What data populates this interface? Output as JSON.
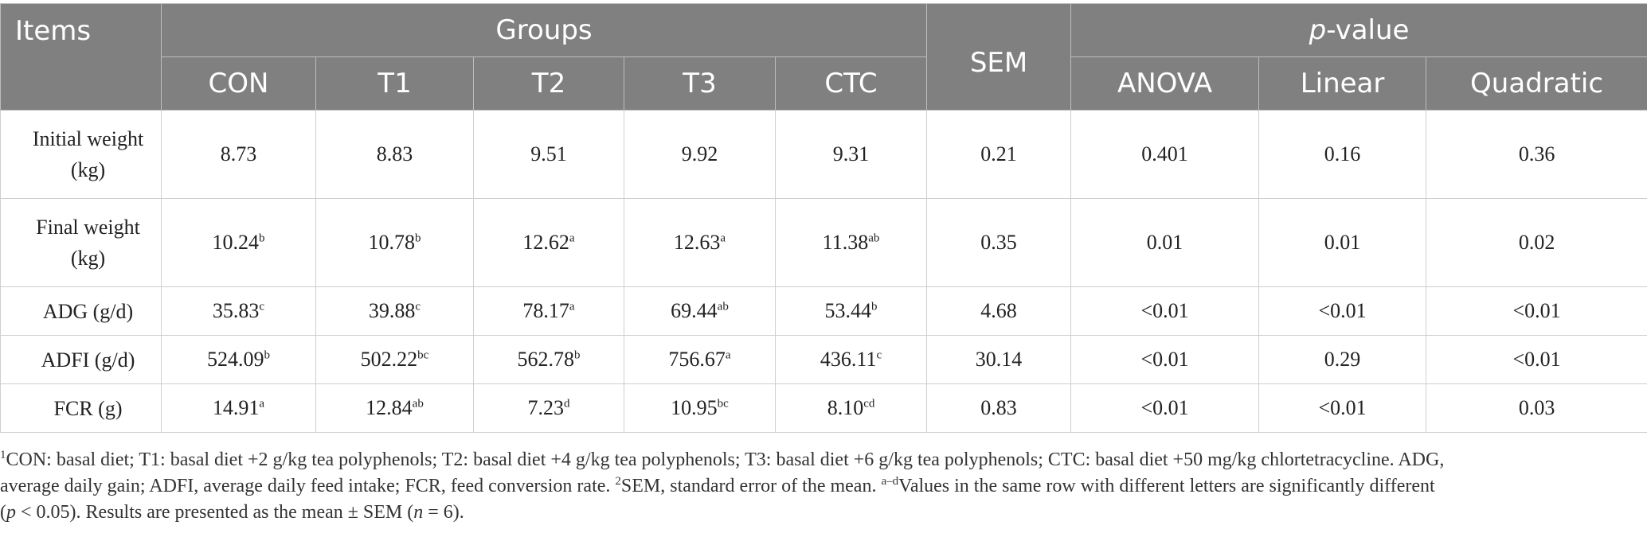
{
  "header": {
    "items": "Items",
    "groups": "Groups",
    "sem": "SEM",
    "pvalue_p": "p",
    "pvalue_rest": "-value",
    "columns": [
      "CON",
      "T1",
      "T2",
      "T3",
      "CTC"
    ],
    "pcolumns": [
      "ANOVA",
      "Linear",
      "Quadratic"
    ]
  },
  "rows": [
    {
      "label": [
        "Initial weight",
        "(kg)"
      ],
      "values": [
        [
          "8.73",
          ""
        ],
        [
          "8.83",
          ""
        ],
        [
          "9.51",
          ""
        ],
        [
          "9.92",
          ""
        ],
        [
          "9.31",
          ""
        ]
      ],
      "sem": "0.21",
      "p": [
        "0.401",
        "0.16",
        "0.36"
      ]
    },
    {
      "label": [
        "Final weight",
        "(kg)"
      ],
      "values": [
        [
          "10.24",
          "b"
        ],
        [
          "10.78",
          "b"
        ],
        [
          "12.62",
          "a"
        ],
        [
          "12.63",
          "a"
        ],
        [
          "11.38",
          "ab"
        ]
      ],
      "sem": "0.35",
      "p": [
        "0.01",
        "0.01",
        "0.02"
      ]
    },
    {
      "label": [
        "ADG (g/d)"
      ],
      "values": [
        [
          "35.83",
          "c"
        ],
        [
          "39.88",
          "c"
        ],
        [
          "78.17",
          "a"
        ],
        [
          "69.44",
          "ab"
        ],
        [
          "53.44",
          "b"
        ]
      ],
      "sem": "4.68",
      "p": [
        "<0.01",
        "<0.01",
        "<0.01"
      ]
    },
    {
      "label": [
        "ADFI (g/d)"
      ],
      "values": [
        [
          "524.09",
          "b"
        ],
        [
          "502.22",
          "bc"
        ],
        [
          "562.78",
          "b"
        ],
        [
          "756.67",
          "a"
        ],
        [
          "436.11",
          "c"
        ]
      ],
      "sem": "30.14",
      "p": [
        "<0.01",
        "0.29",
        "<0.01"
      ]
    },
    {
      "label": [
        "FCR (g)"
      ],
      "values": [
        [
          "14.91",
          "a"
        ],
        [
          "12.84",
          "ab"
        ],
        [
          "7.23",
          "d"
        ],
        [
          "10.95",
          "bc"
        ],
        [
          "8.10",
          "cd"
        ]
      ],
      "sem": "0.83",
      "p": [
        "<0.01",
        "<0.01",
        "0.03"
      ]
    }
  ],
  "notes": {
    "sup1": "1",
    "line1": "CON: basal diet; T1: basal diet +2 g/kg tea polyphenols; T2: basal diet +4 g/kg tea polyphenols; T3: basal diet +6 g/kg tea polyphenols; CTC: basal diet +50 mg/kg chlortetracycline. ADG,",
    "line2a": "average daily gain; ADFI, average daily feed intake; FCR, feed conversion rate. ",
    "sup2": "2",
    "line2b": "SEM, standard error of the mean. ",
    "sup3": "a–d",
    "line2c": "Values in the same row with different letters are significantly different",
    "line3_open": "(",
    "line3_p": "p",
    "line3a": " < 0.05). Results are presented as the mean ± SEM (",
    "line3_n": "n",
    "line3b": " = 6)."
  }
}
